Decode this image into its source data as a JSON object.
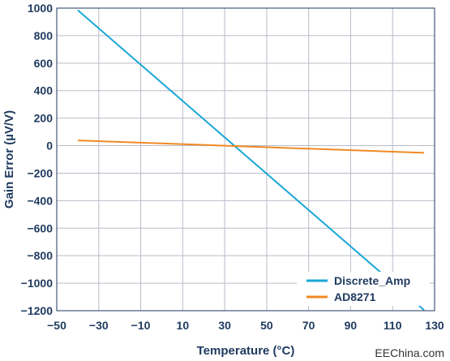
{
  "chart_data": {
    "type": "line",
    "xlabel": "Temperature (°C)",
    "ylabel": "Gain Error (µV/V)",
    "xlim": [
      -50,
      130
    ],
    "ylim": [
      -1200,
      1000
    ],
    "xticks": [
      -50,
      -30,
      -10,
      10,
      30,
      50,
      70,
      90,
      110,
      130
    ],
    "xtick_labels": [
      "−50",
      "−30",
      "−10",
      "10",
      "30",
      "50",
      "70",
      "90",
      "110",
      "130"
    ],
    "yticks": [
      1000,
      800,
      600,
      400,
      200,
      0,
      -200,
      -400,
      -600,
      -800,
      -1000,
      -1200
    ],
    "ytick_labels": [
      "1000",
      "800",
      "600",
      "400",
      "200",
      "0",
      "−200",
      "−400",
      "−600",
      "−800",
      "−1000",
      "−1200"
    ],
    "grid": true,
    "legend_position": "bottom-right",
    "series": [
      {
        "name": "Discrete_Amp",
        "color": "#1aa7d6",
        "x": [
          -40,
          125
        ],
        "y": [
          985,
          -1195
        ]
      },
      {
        "name": "AD8271",
        "color": "#f08a24",
        "x": [
          -40,
          125
        ],
        "y": [
          38,
          -52
        ]
      }
    ]
  },
  "watermark": "EEChina.com"
}
